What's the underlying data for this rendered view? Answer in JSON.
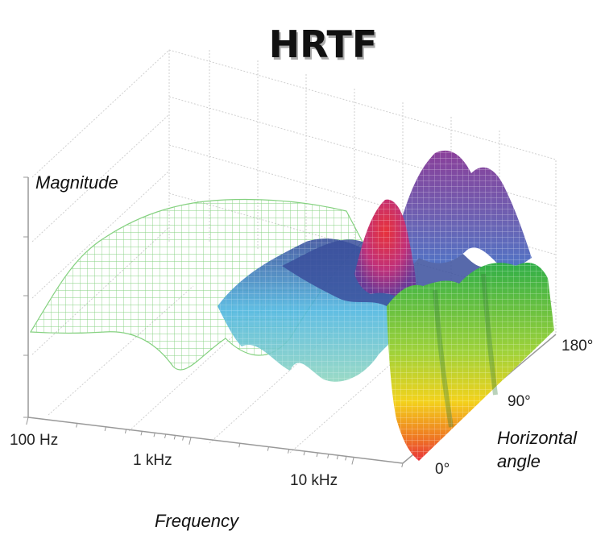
{
  "chart_data": {
    "type": "surface3d",
    "title": "HRTF",
    "zlabel": "Magnitude",
    "xlabel": "Frequency",
    "ylabel_line1": "Horizontal",
    "ylabel_line2": "angle",
    "x_ticks": [
      "100 Hz",
      "1 kHz",
      "10 kHz"
    ],
    "y_ticks": [
      "0°",
      "90°",
      "180°"
    ],
    "x_range_hz": [
      100,
      20000
    ],
    "y_range_deg": [
      0,
      180
    ],
    "grid": true,
    "colors": {
      "low_freq": "#7fcf7a",
      "mid": "#4fb6e0",
      "deep": "#3a4f9c",
      "peak_violet": "#8a3f9a",
      "peak_red": "#e8323a",
      "front_yellow": "#f3d21c",
      "front_orange": "#ef7a22"
    }
  }
}
